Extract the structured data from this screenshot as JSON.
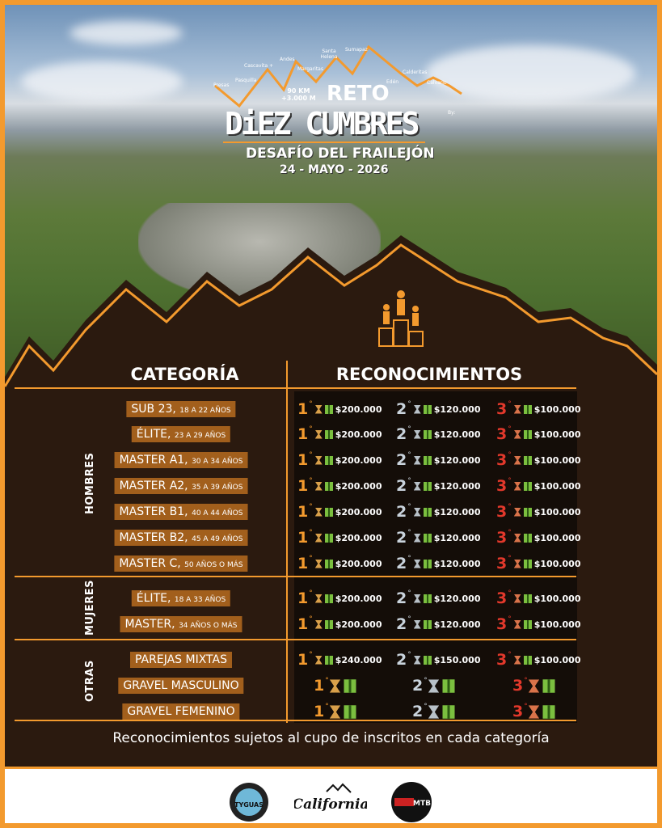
{
  "header": {
    "peaks": [
      "Presas",
      "Pasquilla",
      "Cascavita +",
      "Andes",
      "Margaritas",
      "Santa Helena",
      "Sumapaz",
      "Edén",
      "Calderitas",
      "Calvario"
    ],
    "distance": "90 KM",
    "elevation": "+3.000 M",
    "title_line1": "RETO",
    "title_line2": "DiEZ CUMBRES",
    "by": "By:",
    "subtitle": "DESAFÍO DEL FRAILEJÓN",
    "date": "24 - MAYO - 2026"
  },
  "table": {
    "col_category": "CATEGORÍA",
    "col_awards": "RECONOCIMIENTOS",
    "groups": [
      {
        "label": "HOMBRES",
        "rows": [
          {
            "name": "SUB 23,",
            "ages": "18 A 22 AÑOS",
            "prizes": [
              "$200.000",
              "$120.000",
              "$100.000"
            ]
          },
          {
            "name": "ÉLITE,",
            "ages": "23 A 29 AÑOS",
            "prizes": [
              "$200.000",
              "$120.000",
              "$100.000"
            ]
          },
          {
            "name": "MASTER A1,",
            "ages": "30 A 34 AÑOS",
            "prizes": [
              "$200.000",
              "$120.000",
              "$100.000"
            ]
          },
          {
            "name": "MASTER A2,",
            "ages": "35 A 39 AÑOS",
            "prizes": [
              "$200.000",
              "$120.000",
              "$100.000"
            ]
          },
          {
            "name": "MASTER B1,",
            "ages": "40 A 44 AÑOS",
            "prizes": [
              "$200.000",
              "$120.000",
              "$100.000"
            ]
          },
          {
            "name": "MASTER B2,",
            "ages": "45 A 49 AÑOS",
            "prizes": [
              "$200.000",
              "$120.000",
              "$100.000"
            ]
          },
          {
            "name": "MASTER C,",
            "ages": "50 AÑOS O MÁS",
            "prizes": [
              "$200.000",
              "$120.000",
              "$100.000"
            ]
          }
        ]
      },
      {
        "label": "MUJERES",
        "rows": [
          {
            "name": "ÉLITE,",
            "ages": "18 A 33 AÑOS",
            "prizes": [
              "$200.000",
              "$120.000",
              "$100.000"
            ]
          },
          {
            "name": "MASTER,",
            "ages": "34 AÑOS O MÁS",
            "prizes": [
              "$200.000",
              "$120.000",
              "$100.000"
            ]
          }
        ]
      },
      {
        "label": "OTRAS",
        "rows": [
          {
            "name": "PAREJAS MIXTAS",
            "ages": "",
            "prizes": [
              "$240.000",
              "$150.000",
              "$100.000"
            ]
          },
          {
            "name": "GRAVEL MASCULINO",
            "ages": "",
            "prizes": [
              "",
              "",
              ""
            ]
          },
          {
            "name": "GRAVEL FEMENINO",
            "ages": "",
            "prizes": [
              "",
              "",
              ""
            ]
          }
        ]
      }
    ],
    "places": [
      "1",
      "2",
      "3"
    ],
    "place_mark": "°"
  },
  "colors": {
    "accent": "#f39a2e",
    "background": "#2b1a0f",
    "label_bg": "#a25f1c",
    "first": "#f39a2e",
    "second": "#c9d3dc",
    "third": "#e2382b",
    "gift": "#7bbf3f"
  },
  "footer": {
    "note": "Reconocimientos sujetos al cupo de inscritos en cada categoría",
    "sponsors": [
      "TYGUAS",
      "California",
      "MTB"
    ]
  }
}
